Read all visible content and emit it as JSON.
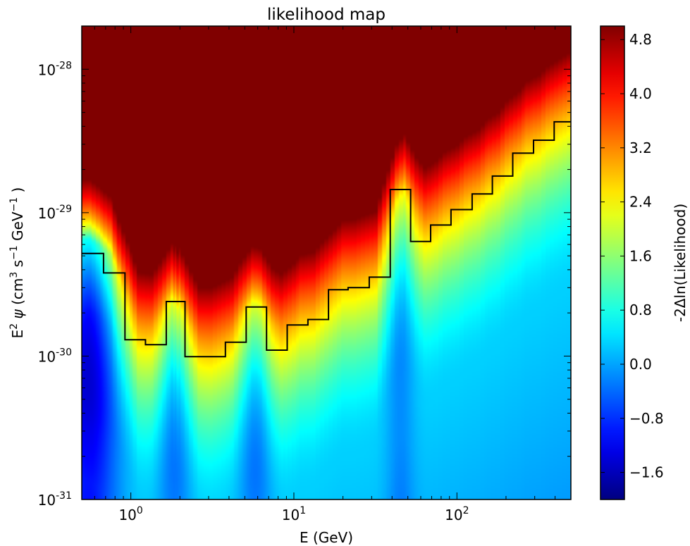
{
  "chart_data": {
    "type": "heatmap",
    "title": "likelihood map",
    "xlabel": "E (GeV)",
    "ylabel_parts": [
      "E",
      "2",
      " ",
      "ψ",
      " (cm",
      "3",
      " s",
      "−1",
      " GeV",
      "−1",
      " )"
    ],
    "colorbar_label": "-2Δln(Likelihood)",
    "x_scale": "log",
    "y_scale": "log",
    "xlim": [
      0.5,
      500
    ],
    "ylim": [
      1e-31,
      2e-28
    ],
    "clim": [
      -2.0,
      5.0
    ],
    "colormap": "jet",
    "x_ticks": [
      {
        "value": 1,
        "base": "10",
        "exp": "0"
      },
      {
        "value": 10,
        "base": "10",
        "exp": "1"
      },
      {
        "value": 100,
        "base": "10",
        "exp": "2"
      }
    ],
    "y_ticks": [
      {
        "value": 1e-31,
        "base": "10",
        "exp": "-31"
      },
      {
        "value": 1e-30,
        "base": "10",
        "exp": "-30"
      },
      {
        "value": 1e-29,
        "base": "10",
        "exp": "-29"
      },
      {
        "value": 1e-28,
        "base": "10",
        "exp": "-28"
      }
    ],
    "colorbar_ticks": [
      {
        "value": 4.8,
        "label": "4.8"
      },
      {
        "value": 4.0,
        "label": "4.0"
      },
      {
        "value": 3.2,
        "label": "3.2"
      },
      {
        "value": 2.4,
        "label": "2.4"
      },
      {
        "value": 1.6,
        "label": "1.6"
      },
      {
        "value": 0.8,
        "label": "0.8"
      },
      {
        "value": 0.0,
        "label": "0.0"
      },
      {
        "value": -0.8,
        "label": "−0.8"
      },
      {
        "value": -1.6,
        "label": "−1.6"
      }
    ],
    "upper_limit_bins": [
      {
        "e_min": 0.5,
        "e_max": 0.68,
        "limit": 5.2e-30
      },
      {
        "e_min": 0.68,
        "e_max": 0.92,
        "limit": 3.8e-30
      },
      {
        "e_min": 0.92,
        "e_max": 1.23,
        "limit": 1.3e-30
      },
      {
        "e_min": 1.23,
        "e_max": 1.65,
        "limit": 1.2e-30
      },
      {
        "e_min": 1.65,
        "e_max": 2.15,
        "limit": 2.4e-30
      },
      {
        "e_min": 2.15,
        "e_max": 3.8,
        "limit": 9.9e-31
      },
      {
        "e_min": 3.8,
        "e_max": 5.1,
        "limit": 1.25e-30
      },
      {
        "e_min": 5.1,
        "e_max": 6.8,
        "limit": 2.2e-30
      },
      {
        "e_min": 6.8,
        "e_max": 9.1,
        "limit": 1.1e-30
      },
      {
        "e_min": 9.1,
        "e_max": 12.2,
        "limit": 1.65e-30
      },
      {
        "e_min": 12.2,
        "e_max": 16.3,
        "limit": 1.8e-30
      },
      {
        "e_min": 16.3,
        "e_max": 21.5,
        "limit": 2.9e-30
      },
      {
        "e_min": 21.5,
        "e_max": 29.0,
        "limit": 3e-30
      },
      {
        "e_min": 29.0,
        "e_max": 39.0,
        "limit": 3.55e-30
      },
      {
        "e_min": 39.0,
        "e_max": 52.0,
        "limit": 1.45e-29
      },
      {
        "e_min": 52.0,
        "e_max": 69.0,
        "limit": 6.3e-30
      },
      {
        "e_min": 69.0,
        "e_max": 92.0,
        "limit": 8.2e-30
      },
      {
        "e_min": 92.0,
        "e_max": 124.0,
        "limit": 1.05e-29
      },
      {
        "e_min": 124.0,
        "e_max": 165.0,
        "limit": 1.35e-29
      },
      {
        "e_min": 165.0,
        "e_max": 220.0,
        "limit": 1.8e-29
      },
      {
        "e_min": 220.0,
        "e_max": 295.0,
        "limit": 2.6e-29
      },
      {
        "e_min": 295.0,
        "e_max": 395.0,
        "limit": 3.2e-29
      },
      {
        "e_min": 395.0,
        "e_max": 500.0,
        "limit": 4.3e-29
      }
    ],
    "dips": [
      {
        "e_center": 0.55,
        "sigma_decade": 0.12,
        "depth": 2.4
      },
      {
        "e_center": 1.85,
        "sigma_decade": 0.07,
        "depth": 0.9
      },
      {
        "e_center": 5.8,
        "sigma_decade": 0.07,
        "depth": 0.9
      },
      {
        "e_center": 45.0,
        "sigma_decade": 0.06,
        "depth": 0.7
      }
    ]
  }
}
